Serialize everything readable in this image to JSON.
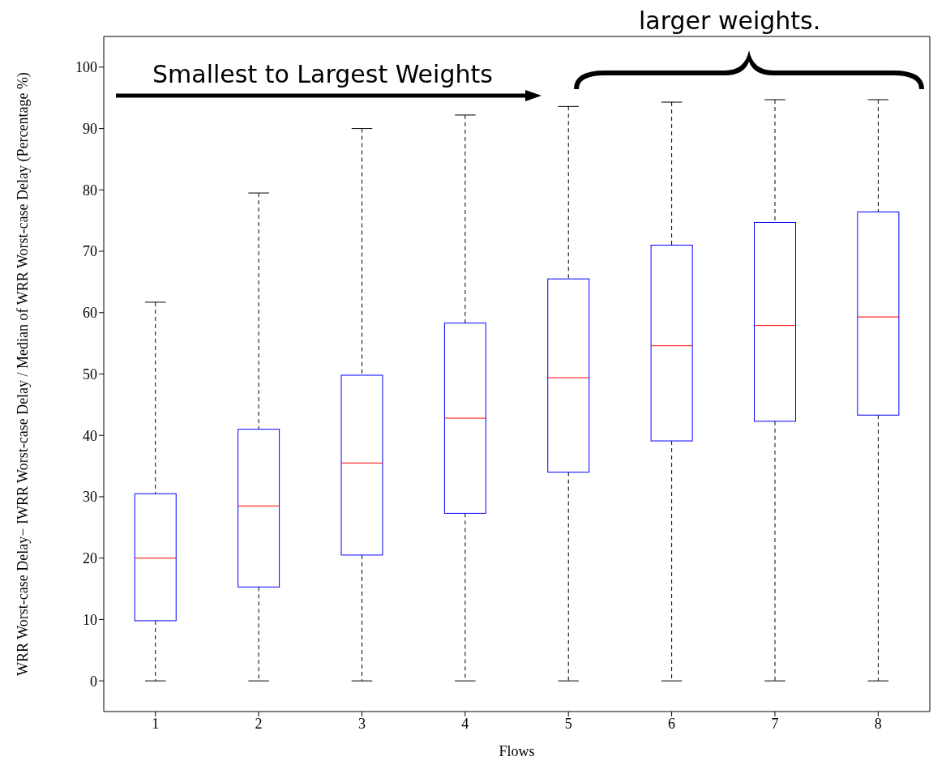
{
  "chart_data": {
    "type": "box",
    "xlabel": "Flows",
    "ylabel": "WRR Worst-case Delay− IWRR Worst-case Delay / Median of WRR Worst-case Delay (Percentage %)",
    "categories": [
      "1",
      "2",
      "3",
      "4",
      "5",
      "6",
      "7",
      "8"
    ],
    "color": "#0000ff",
    "ylim": [
      -5,
      105
    ],
    "yticks": [
      0,
      10,
      20,
      30,
      40,
      50,
      60,
      70,
      80,
      90,
      100
    ],
    "boxes": [
      {
        "low": 0,
        "q1": 9.8,
        "median": 20,
        "q3": 30.5,
        "high": 61.7
      },
      {
        "low": 0,
        "q1": 15.3,
        "median": 28.5,
        "q3": 41,
        "high": 79.5
      },
      {
        "low": 0,
        "q1": 20.5,
        "median": 35.5,
        "q3": 49.8,
        "high": 90
      },
      {
        "low": 0,
        "q1": 27.3,
        "median": 42.8,
        "q3": 58.3,
        "high": 92.2
      },
      {
        "low": 0,
        "q1": 34,
        "median": 49.4,
        "q3": 65.5,
        "high": 93.6
      },
      {
        "low": 0,
        "q1": 39.1,
        "median": 54.6,
        "q3": 71,
        "high": 94.3
      },
      {
        "low": 0,
        "q1": 42.3,
        "median": 57.9,
        "q3": 74.7,
        "high": 94.7
      },
      {
        "low": 0,
        "q1": 43.3,
        "median": 59.3,
        "q3": 76.4,
        "high": 94.7
      }
    ],
    "annotations": [
      "Smallest to Largest Weights",
      "larger weights."
    ],
    "grid": false
  }
}
